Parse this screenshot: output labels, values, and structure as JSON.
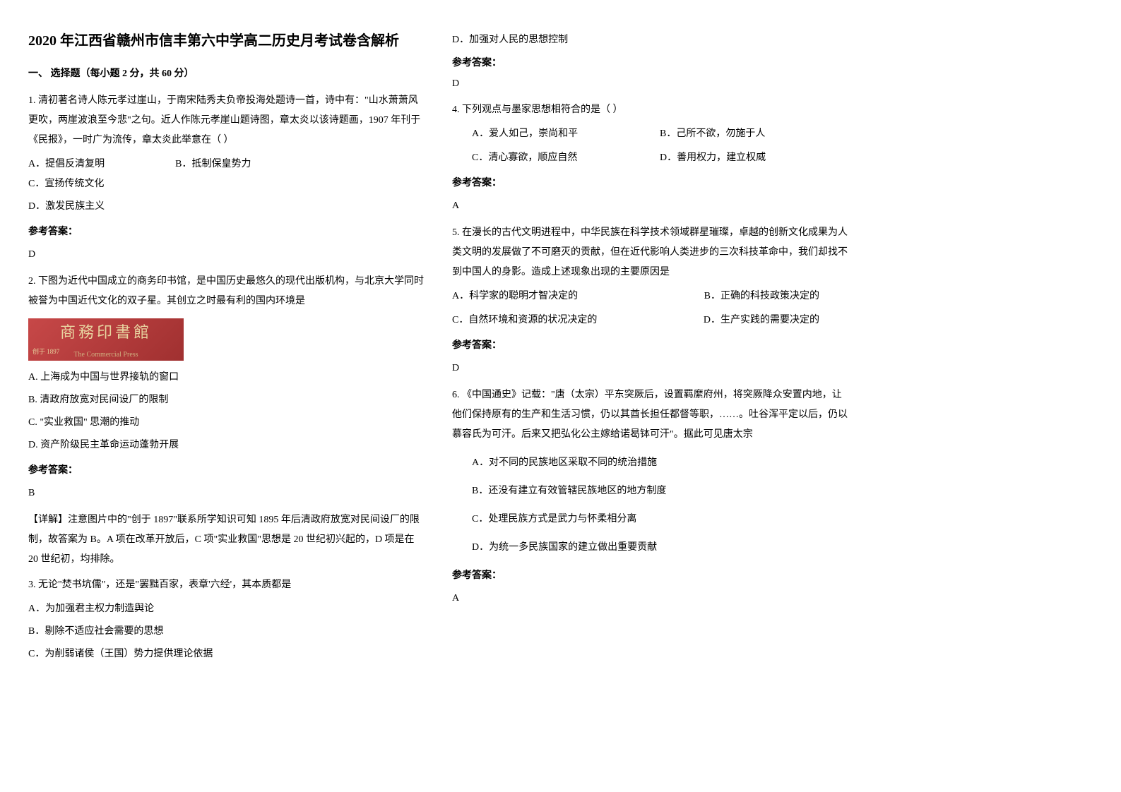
{
  "title": "2020 年江西省赣州市信丰第六中学高二历史月考试卷含解析",
  "section1": "一、 选择题（每小题 2 分，共 60 分）",
  "q1": {
    "text": "1. 清初著名诗人陈元孝过崖山，于南宋陆秀夫负帝投海处题诗一首，诗中有：\"山水萧萧风更吹，两崖波浪至今悲\"之句。近人作陈元孝崖山题诗图，章太炎以该诗题画，1907 年刊于《民报》，一时广为流传，章太炎此举意在（        ）",
    "optA": "A．提倡反清复明",
    "optB": "B．抵制保皇势力",
    "optC": "C．宣扬传统文化",
    "optD": "D．激发民族主义",
    "answerLabel": "参考答案：",
    "answer": "D"
  },
  "q2": {
    "text": "2. 下图为近代中国成立的商务印书馆，是中国历史最悠久的现代出版机构，与北京大学同时被誉为中国近代文化的双子星。其创立之时最有利的国内环境是",
    "logoMain": "商務印書館",
    "logoSub": "The Commercial Press",
    "logoYear": "创于 1897",
    "optA": "A. 上海成为中国与世界接轨的窗口",
    "optB": "B. 清政府放宽对民间设厂的限制",
    "optC": "C. \"实业救国\" 思潮的推动",
    "optD": "D. 资产阶级民主革命运动蓬勃开展",
    "answerLabel": "参考答案：",
    "answer": "B",
    "detail": "【详解】注意图片中的\"创于 1897\"联系所学知识可知 1895 年后清政府放宽对民间设厂的限制，故答案为 B。A 项在改革开放后，C 项\"实业救国\"思想是 20 世纪初兴起的，D 项是在 20 世纪初，均排除。"
  },
  "q3": {
    "text": "3. 无论\"焚书坑儒\"，还是\"罢黜百家，表章'六经'，其本质都是",
    "optA": "A．为加强君主权力制造舆论",
    "optB": "B．剔除不适应社会需要的思想",
    "optC": "C．为削弱诸侯（王国）势力提供理论依据",
    "optD": "D．加强对人民的思想控制",
    "answerLabel": "参考答案：",
    "answer": "D"
  },
  "q4": {
    "text": "4. 下列观点与墨家思想相符合的是（      ）",
    "optA": "A．爱人如己，崇尚和平",
    "optB": "B．己所不欲，勿施于人",
    "optC": "C．清心寡欲，顺应自然",
    "optD": "D．善用权力，建立权威",
    "answerLabel": "参考答案：",
    "answer": "A"
  },
  "q5": {
    "text": "5. 在漫长的古代文明进程中，中华民族在科学技术领域群星璀璨，卓越的创新文化成果为人类文明的发展做了不可磨灭的贡献，但在近代影响人类进步的三次科技革命中，我们却找不到中国人的身影。造成上述现象出现的主要原因是",
    "optA": "A．科学家的聪明才智决定的",
    "optB": "B．正确的科技政策决定的",
    "optC": "C．自然环境和资源的状况决定的",
    "optD": "D．生产实践的需要决定的",
    "answerLabel": "参考答案：",
    "answer": "D"
  },
  "q6": {
    "text": "6. 《中国通史》记载：\"唐（太宗）平东突厥后，设置羁縻府州，将突厥降众安置内地，让他们保持原有的生产和生活习惯，仍以其酋长担任都督等职，……。吐谷浑平定以后，仍以慕容氏为可汗。后来又把弘化公主嫁给诺曷钵可汗\"。据此可见唐太宗",
    "optA": "A．对不同的民族地区采取不同的统治措施",
    "optB": "B．还没有建立有效管辖民族地区的地方制度",
    "optC": "C．处理民族方式是武力与怀柔相分离",
    "optD": "D．为统一多民族国家的建立做出重要贡献",
    "answerLabel": "参考答案：",
    "answer": "A"
  }
}
